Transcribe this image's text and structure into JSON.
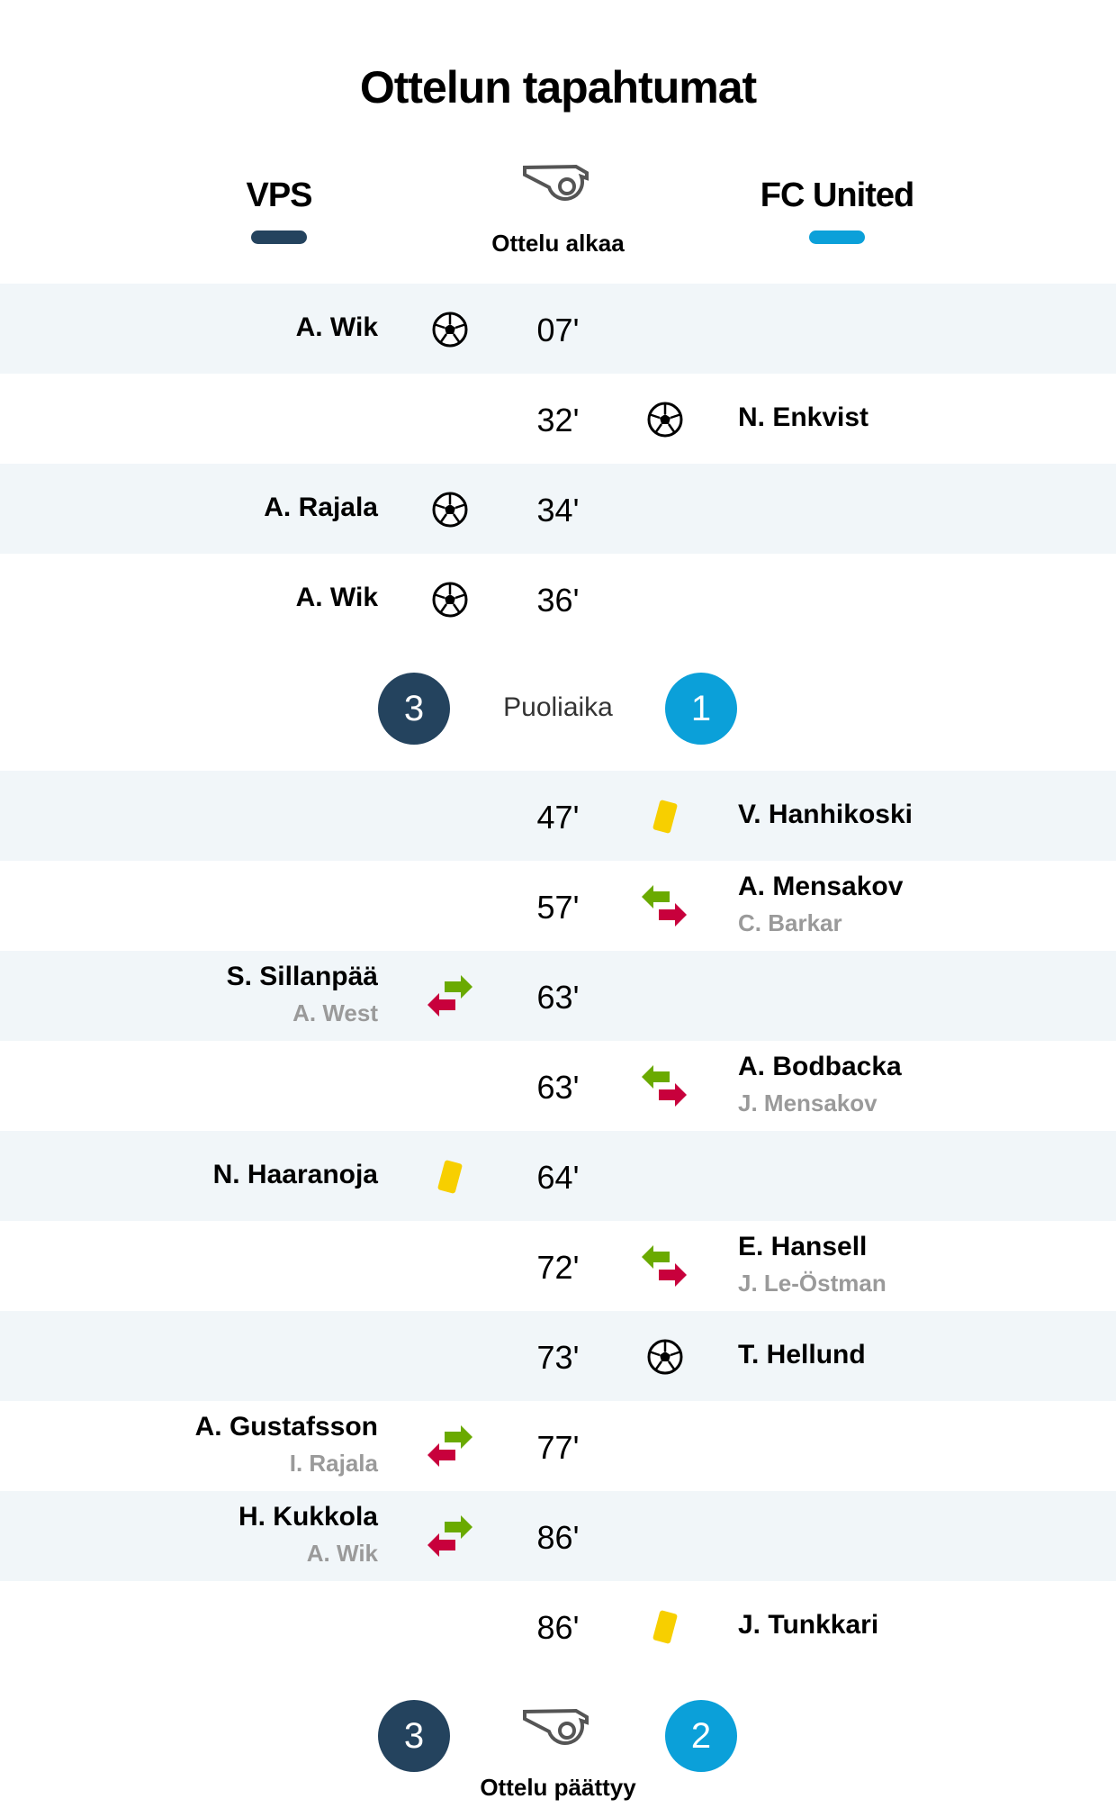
{
  "title": "Ottelun tapahtumat",
  "home_team": {
    "name": "VPS",
    "color": "#24435e"
  },
  "away_team": {
    "name": "FC United",
    "color": "#0ba0d9"
  },
  "start_label": "Ottelu alkaa",
  "halftime": {
    "label": "Puoliaika",
    "home_score": "3",
    "away_score": "1"
  },
  "fulltime": {
    "label": "Ottelu päättyy",
    "home_score": "3",
    "away_score": "2"
  },
  "colors": {
    "row_alt": "#f1f6f9",
    "yellow_card": "#f7cf00",
    "sub_in": "#6aaa00",
    "sub_out": "#c8003c"
  },
  "first_half": [
    {
      "minute": "07'",
      "side": "home",
      "type": "goal",
      "icon": "soccer-ball-icon",
      "player": "A. Wik"
    },
    {
      "minute": "32'",
      "side": "away",
      "type": "goal",
      "icon": "soccer-ball-icon",
      "player": "N. Enkvist"
    },
    {
      "minute": "34'",
      "side": "home",
      "type": "goal",
      "icon": "soccer-ball-icon",
      "player": "A. Rajala"
    },
    {
      "minute": "36'",
      "side": "home",
      "type": "goal",
      "icon": "soccer-ball-icon",
      "player": "A. Wik"
    }
  ],
  "second_half": [
    {
      "minute": "47'",
      "side": "away",
      "type": "yellow",
      "icon": "yellow-card-icon",
      "player": "V. Hanhikoski"
    },
    {
      "minute": "57'",
      "side": "away",
      "type": "sub",
      "icon": "substitution-icon",
      "player": "A. Mensakov",
      "sub_player": "C. Barkar"
    },
    {
      "minute": "63'",
      "side": "home",
      "type": "sub",
      "icon": "substitution-icon",
      "player": "S. Sillanpää",
      "sub_player": "A. West"
    },
    {
      "minute": "63'",
      "side": "away",
      "type": "sub",
      "icon": "substitution-icon",
      "player": "A. Bodbacka",
      "sub_player": "J. Mensakov"
    },
    {
      "minute": "64'",
      "side": "home",
      "type": "yellow",
      "icon": "yellow-card-icon",
      "player": "N. Haaranoja"
    },
    {
      "minute": "72'",
      "side": "away",
      "type": "sub",
      "icon": "substitution-icon",
      "player": "E. Hansell",
      "sub_player": "J. Le-Östman"
    },
    {
      "minute": "73'",
      "side": "away",
      "type": "goal",
      "icon": "soccer-ball-icon",
      "player": "T. Hellund"
    },
    {
      "minute": "77'",
      "side": "home",
      "type": "sub",
      "icon": "substitution-icon",
      "player": "A. Gustafsson",
      "sub_player": "I. Rajala"
    },
    {
      "minute": "86'",
      "side": "home",
      "type": "sub",
      "icon": "substitution-icon",
      "player": "H. Kukkola",
      "sub_player": "A. Wik"
    },
    {
      "minute": "86'",
      "side": "away",
      "type": "yellow",
      "icon": "yellow-card-icon",
      "player": "J. Tunkkari"
    }
  ]
}
